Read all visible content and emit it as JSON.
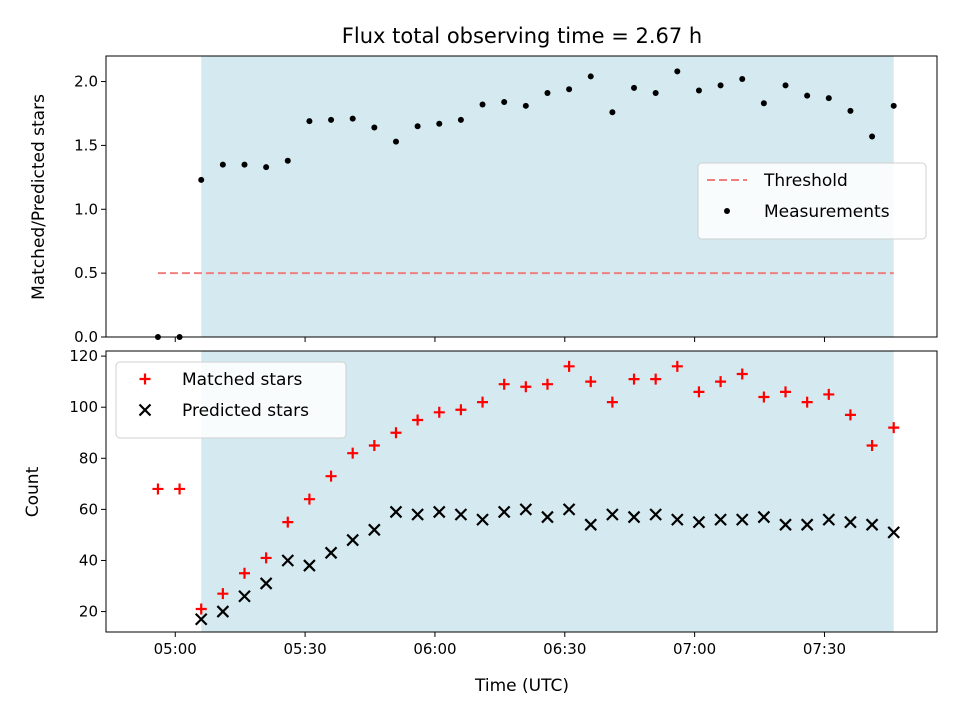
{
  "chart_data": {
    "type": "scatter",
    "title": "Flux total observing time = 2.67 h",
    "x_units": "time (UTC)",
    "xlabel": "Time (UTC)",
    "x_ticks": [
      "05:00",
      "05:30",
      "06:00",
      "06:30",
      "07:00",
      "07:30"
    ],
    "x_tick_values": [
      "05:00",
      "05:30",
      "06:00",
      "06:30",
      "07:00",
      "07:30"
    ],
    "xlim": [
      "04:44",
      "07:56"
    ],
    "shaded_region": {
      "from": "05:06",
      "to": "07:46",
      "color": "#d4eaf0"
    },
    "panels": [
      {
        "ylabel": "Matched/Predicted stars",
        "ylim": [
          0,
          2.2
        ],
        "y_ticks": [
          "0.0",
          "0.5",
          "1.0",
          "1.5",
          "2.0"
        ],
        "legend": {
          "position": "center-right"
        },
        "series": [
          {
            "name": "Threshold",
            "kind": "dashed-line",
            "color": "#f08080",
            "x": [
              "04:56",
              "07:46"
            ],
            "y": [
              0.5,
              0.5
            ]
          },
          {
            "name": "Measurements",
            "kind": "dots",
            "color": "#000000",
            "x": [
              "04:56",
              "05:01",
              "05:06",
              "05:11",
              "05:16",
              "05:21",
              "05:26",
              "05:31",
              "05:36",
              "05:41",
              "05:46",
              "05:51",
              "05:56",
              "06:01",
              "06:06",
              "06:11",
              "06:16",
              "06:21",
              "06:26",
              "06:31",
              "06:36",
              "06:41",
              "06:46",
              "06:51",
              "06:56",
              "07:01",
              "07:06",
              "07:11",
              "07:16",
              "07:21",
              "07:26",
              "07:31",
              "07:36",
              "07:41",
              "07:46"
            ],
            "y": [
              0.0,
              0.0,
              1.23,
              1.35,
              1.35,
              1.33,
              1.38,
              1.69,
              1.7,
              1.71,
              1.64,
              1.53,
              1.65,
              1.67,
              1.7,
              1.82,
              1.84,
              1.81,
              1.91,
              1.94,
              2.04,
              1.76,
              1.95,
              1.91,
              2.08,
              1.93,
              1.97,
              2.02,
              1.83,
              1.97,
              1.89,
              1.87,
              1.77,
              1.57,
              1.81
            ]
          }
        ]
      },
      {
        "ylabel": "Count",
        "ylim": [
          12,
          122
        ],
        "y_ticks": [
          "20",
          "40",
          "60",
          "80",
          "100",
          "120"
        ],
        "legend": {
          "position": "top-left"
        },
        "series": [
          {
            "name": "Matched stars",
            "kind": "plus",
            "color": "#ff0000",
            "x": [
              "04:56",
              "05:01",
              "05:06",
              "05:11",
              "05:16",
              "05:21",
              "05:26",
              "05:31",
              "05:36",
              "05:41",
              "05:46",
              "05:51",
              "05:56",
              "06:01",
              "06:06",
              "06:11",
              "06:16",
              "06:21",
              "06:26",
              "06:31",
              "06:36",
              "06:41",
              "06:46",
              "06:51",
              "06:56",
              "07:01",
              "07:06",
              "07:11",
              "07:16",
              "07:21",
              "07:26",
              "07:31",
              "07:36",
              "07:41",
              "07:46"
            ],
            "y": [
              68,
              68,
              21,
              27,
              35,
              41,
              55,
              64,
              73,
              82,
              85,
              90,
              95,
              98,
              99,
              102,
              109,
              108,
              109,
              116,
              110,
              102,
              111,
              111,
              116,
              106,
              110,
              113,
              104,
              106,
              102,
              105,
              97,
              85,
              92
            ]
          },
          {
            "name": "Predicted stars",
            "kind": "x",
            "color": "#000000",
            "x": [
              "05:06",
              "05:11",
              "05:16",
              "05:21",
              "05:26",
              "05:31",
              "05:36",
              "05:41",
              "05:46",
              "05:51",
              "05:56",
              "06:01",
              "06:06",
              "06:11",
              "06:16",
              "06:21",
              "06:26",
              "06:31",
              "06:36",
              "06:41",
              "06:46",
              "06:51",
              "06:56",
              "07:01",
              "07:06",
              "07:11",
              "07:16",
              "07:21",
              "07:26",
              "07:31",
              "07:36",
              "07:41",
              "07:46"
            ],
            "y": [
              17,
              20,
              26,
              31,
              40,
              38,
              43,
              48,
              52,
              59,
              58,
              59,
              58,
              56,
              59,
              60,
              57,
              60,
              54,
              58,
              57,
              58,
              56,
              55,
              56,
              56,
              57,
              54,
              54,
              56,
              55,
              54,
              51
            ]
          }
        ]
      }
    ]
  }
}
